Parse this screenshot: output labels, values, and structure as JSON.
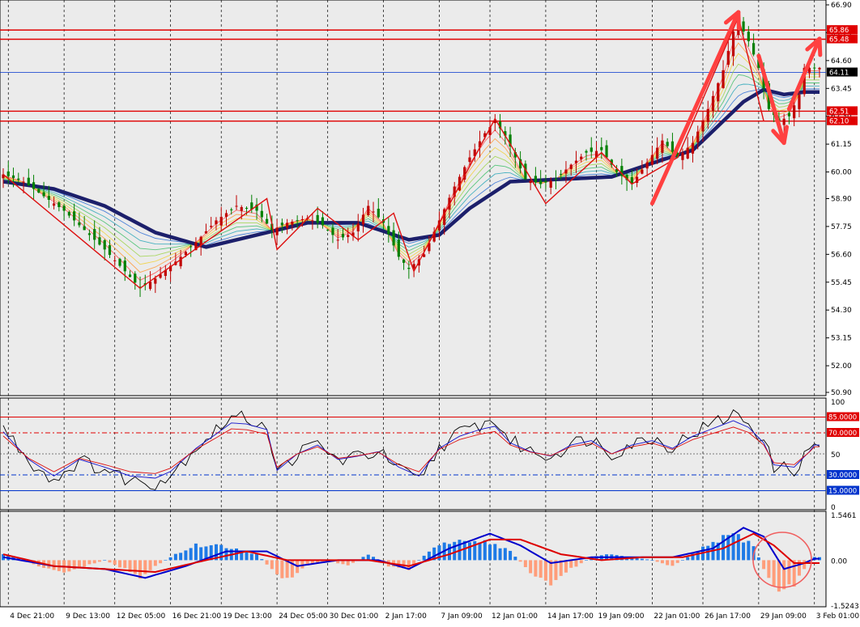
{
  "colors": {
    "background": "#ffffff",
    "plot_bg": "#ebebeb",
    "grid": "#000000",
    "candle_bull": "#c00000",
    "candle_bear": "#008000",
    "ma_thick": "#1c1f6b",
    "level_red": "#e00000",
    "level_blue": "#0033cc",
    "arrow": "#ff4040",
    "hist_pos": "#1e7ae6",
    "hist_neg": "#ff9d7a",
    "macd_line": "#0000cc",
    "signal_line": "#dd0000",
    "circle": "#f06060"
  },
  "chart_data": [
    {
      "type": "candlestick",
      "panel": "price",
      "ylim": [
        50.9,
        66.9
      ],
      "y_ticks": [
        "66.90",
        "65.75",
        "64.60",
        "63.45",
        "62.30",
        "61.15",
        "60.00",
        "58.90",
        "57.75",
        "56.60",
        "55.45",
        "54.30",
        "53.15",
        "52.00",
        "50.90"
      ],
      "x_labels": [
        "4 Dec 21:00",
        "9 Dec 13:00",
        "12 Dec 05:00",
        "16 Dec 21:00",
        "19 Dec 13:00",
        "24 Dec 05:00",
        "30 Dec 01:00",
        "2 Jan 17:00",
        "7 Jan 09:00",
        "12 Jan 01:00",
        "14 Jan 17:00",
        "19 Jan 09:00",
        "22 Jan 01:00",
        "26 Jan 17:00",
        "29 Jan 09:00",
        "3 Feb 01:00"
      ],
      "price_path_approx": [
        [
          0,
          59.9
        ],
        [
          4,
          59.6
        ],
        [
          8,
          59.0
        ],
        [
          12,
          58.4
        ],
        [
          16,
          57.6
        ],
        [
          20,
          56.8
        ],
        [
          24,
          55.9
        ],
        [
          27,
          55.2
        ],
        [
          30,
          55.6
        ],
        [
          34,
          56.3
        ],
        [
          38,
          57.1
        ],
        [
          42,
          58.0
        ],
        [
          46,
          58.6
        ],
        [
          50,
          58.4
        ],
        [
          53,
          57.6
        ],
        [
          56,
          57.9
        ],
        [
          60,
          58.1
        ],
        [
          63,
          57.8
        ],
        [
          66,
          57.2
        ],
        [
          69,
          57.5
        ],
        [
          72,
          58.6
        ],
        [
          75,
          57.9
        ],
        [
          78,
          56.5
        ],
        [
          80,
          56.0
        ],
        [
          83,
          56.6
        ],
        [
          86,
          58.0
        ],
        [
          89,
          59.4
        ],
        [
          92,
          60.6
        ],
        [
          95,
          61.6
        ],
        [
          97,
          62.1
        ],
        [
          99,
          61.5
        ],
        [
          101,
          60.6
        ],
        [
          103,
          59.7
        ],
        [
          106,
          59.5
        ],
        [
          109,
          59.7
        ],
        [
          112,
          60.3
        ],
        [
          115,
          60.8
        ],
        [
          118,
          60.9
        ],
        [
          121,
          60.0
        ],
        [
          124,
          59.5
        ],
        [
          127,
          60.4
        ],
        [
          130,
          61.3
        ],
        [
          133,
          60.6
        ],
        [
          136,
          61.2
        ],
        [
          139,
          62.6
        ],
        [
          142,
          64.2
        ],
        [
          144,
          65.8
        ],
        [
          145,
          66.2
        ],
        [
          147,
          65.4
        ],
        [
          149,
          64.3
        ],
        [
          151,
          62.6
        ],
        [
          153,
          62.1
        ],
        [
          155,
          62.3
        ],
        [
          157,
          63.2
        ],
        [
          158,
          64.3
        ]
      ],
      "moving_average_thick_approx": [
        [
          0,
          59.6
        ],
        [
          10,
          59.3
        ],
        [
          20,
          58.6
        ],
        [
          30,
          57.5
        ],
        [
          40,
          56.9
        ],
        [
          50,
          57.4
        ],
        [
          60,
          57.9
        ],
        [
          70,
          57.9
        ],
        [
          80,
          57.2
        ],
        [
          86,
          57.4
        ],
        [
          92,
          58.5
        ],
        [
          100,
          59.6
        ],
        [
          110,
          59.7
        ],
        [
          120,
          59.8
        ],
        [
          130,
          60.5
        ],
        [
          136,
          60.9
        ],
        [
          140,
          61.7
        ],
        [
          146,
          62.9
        ],
        [
          150,
          63.4
        ],
        [
          154,
          63.2
        ],
        [
          158,
          63.3
        ]
      ],
      "zigzag_approx": [
        [
          0,
          59.9
        ],
        [
          27,
          55.2
        ],
        [
          52,
          58.9
        ],
        [
          54,
          56.8
        ],
        [
          62,
          58.5
        ],
        [
          70,
          57.2
        ],
        [
          77,
          58.3
        ],
        [
          81,
          55.9
        ],
        [
          97,
          62.2
        ],
        [
          107,
          58.7
        ],
        [
          118,
          60.8
        ],
        [
          124,
          59.5
        ],
        [
          133,
          60.6
        ],
        [
          145,
          66.4
        ],
        [
          150,
          62.1
        ]
      ],
      "horizontal_levels": [
        {
          "value": 65.86,
          "label": "65.86",
          "color": "red"
        },
        {
          "value": 65.48,
          "label": "65.48",
          "color": "red"
        },
        {
          "value": 64.11,
          "label": "64.11",
          "color": "blue"
        },
        {
          "value": 62.51,
          "label": "62.51",
          "color": "red"
        },
        {
          "value": 62.1,
          "label": "62.10",
          "color": "red"
        }
      ],
      "arrows": [
        {
          "from": [
            128,
            58.7
          ],
          "to": [
            145,
            66.6
          ]
        },
        {
          "from": [
            149,
            64.8
          ],
          "to": [
            154,
            61.2
          ]
        },
        {
          "from": [
            155,
            62.6
          ],
          "to": [
            161,
            65.5
          ]
        }
      ],
      "n_bars": 162
    },
    {
      "type": "line",
      "panel": "oscillator",
      "ylim": [
        0,
        100
      ],
      "y_ticks": [
        "100",
        "50",
        "0"
      ],
      "levels": [
        {
          "value": 85,
          "label": "85.0000",
          "color": "red"
        },
        {
          "value": 70,
          "label": "70.0000",
          "color": "red"
        },
        {
          "value": 30,
          "label": "30.0000",
          "color": "blue"
        },
        {
          "value": 15,
          "label": "15.0000",
          "color": "blue"
        }
      ],
      "series_approx": [
        [
          0,
          70
        ],
        [
          5,
          45
        ],
        [
          10,
          30
        ],
        [
          15,
          45
        ],
        [
          20,
          38
        ],
        [
          25,
          30
        ],
        [
          30,
          28
        ],
        [
          33,
          34
        ],
        [
          38,
          55
        ],
        [
          42,
          68
        ],
        [
          45,
          78
        ],
        [
          48,
          77
        ],
        [
          52,
          72
        ],
        [
          54,
          35
        ],
        [
          58,
          50
        ],
        [
          62,
          58
        ],
        [
          66,
          45
        ],
        [
          70,
          48
        ],
        [
          74,
          52
        ],
        [
          78,
          38
        ],
        [
          82,
          30
        ],
        [
          86,
          55
        ],
        [
          90,
          66
        ],
        [
          94,
          72
        ],
        [
          97,
          75
        ],
        [
          100,
          60
        ],
        [
          104,
          52
        ],
        [
          108,
          48
        ],
        [
          112,
          58
        ],
        [
          116,
          62
        ],
        [
          120,
          50
        ],
        [
          124,
          58
        ],
        [
          128,
          62
        ],
        [
          132,
          55
        ],
        [
          136,
          66
        ],
        [
          140,
          73
        ],
        [
          144,
          80
        ],
        [
          147,
          74
        ],
        [
          150,
          60
        ],
        [
          152,
          40
        ],
        [
          156,
          38
        ],
        [
          159,
          52
        ],
        [
          160,
          58
        ]
      ]
    },
    {
      "type": "bar",
      "panel": "macd",
      "ylim": [
        -1.5243,
        1.5461
      ],
      "y_ticks": [
        "1.5461",
        "0.00",
        "-1.5243"
      ],
      "histogram_approx": [
        [
          0,
          0.2
        ],
        [
          4,
          0.05
        ],
        [
          8,
          -0.3
        ],
        [
          12,
          -0.4
        ],
        [
          16,
          -0.2
        ],
        [
          20,
          0.0
        ],
        [
          24,
          -0.3
        ],
        [
          27,
          -0.6
        ],
        [
          30,
          -0.2
        ],
        [
          34,
          0.2
        ],
        [
          38,
          0.5
        ],
        [
          42,
          0.5
        ],
        [
          46,
          0.4
        ],
        [
          50,
          0.2
        ],
        [
          53,
          -0.3
        ],
        [
          56,
          -0.7
        ],
        [
          60,
          -0.2
        ],
        [
          64,
          0.0
        ],
        [
          68,
          -0.2
        ],
        [
          72,
          0.2
        ],
        [
          76,
          -0.2
        ],
        [
          80,
          -0.3
        ],
        [
          84,
          0.3
        ],
        [
          88,
          0.6
        ],
        [
          92,
          0.7
        ],
        [
          96,
          0.6
        ],
        [
          100,
          0.3
        ],
        [
          104,
          -0.4
        ],
        [
          108,
          -0.8
        ],
        [
          112,
          -0.3
        ],
        [
          116,
          0.1
        ],
        [
          120,
          0.2
        ],
        [
          124,
          0.1
        ],
        [
          128,
          0.0
        ],
        [
          132,
          -0.2
        ],
        [
          136,
          0.2
        ],
        [
          140,
          0.6
        ],
        [
          144,
          0.9
        ],
        [
          148,
          0.5
        ],
        [
          150,
          -0.3
        ],
        [
          153,
          -1.1
        ],
        [
          156,
          -0.8
        ],
        [
          158,
          -0.3
        ],
        [
          160,
          0.1
        ]
      ],
      "macd_line_approx": [
        [
          0,
          0.1
        ],
        [
          10,
          -0.2
        ],
        [
          20,
          -0.3
        ],
        [
          28,
          -0.6
        ],
        [
          36,
          -0.2
        ],
        [
          44,
          0.3
        ],
        [
          52,
          0.3
        ],
        [
          58,
          -0.2
        ],
        [
          66,
          0.0
        ],
        [
          74,
          0.0
        ],
        [
          80,
          -0.3
        ],
        [
          88,
          0.4
        ],
        [
          96,
          0.9
        ],
        [
          102,
          0.5
        ],
        [
          108,
          -0.1
        ],
        [
          116,
          0.1
        ],
        [
          124,
          0.1
        ],
        [
          132,
          0.1
        ],
        [
          140,
          0.4
        ],
        [
          146,
          1.1
        ],
        [
          150,
          0.8
        ],
        [
          154,
          -0.3
        ],
        [
          158,
          -0.1
        ],
        [
          160,
          0.05
        ]
      ],
      "signal_line_approx": [
        [
          0,
          0.2
        ],
        [
          10,
          -0.2
        ],
        [
          20,
          -0.3
        ],
        [
          30,
          -0.4
        ],
        [
          40,
          0.0
        ],
        [
          48,
          0.3
        ],
        [
          56,
          0.0
        ],
        [
          64,
          0.0
        ],
        [
          72,
          0.0
        ],
        [
          80,
          -0.2
        ],
        [
          88,
          0.2
        ],
        [
          96,
          0.7
        ],
        [
          102,
          0.7
        ],
        [
          110,
          0.2
        ],
        [
          118,
          0.0
        ],
        [
          126,
          0.1
        ],
        [
          134,
          0.1
        ],
        [
          142,
          0.4
        ],
        [
          148,
          0.9
        ],
        [
          152,
          0.5
        ],
        [
          156,
          -0.1
        ],
        [
          160,
          -0.1
        ]
      ]
    }
  ]
}
